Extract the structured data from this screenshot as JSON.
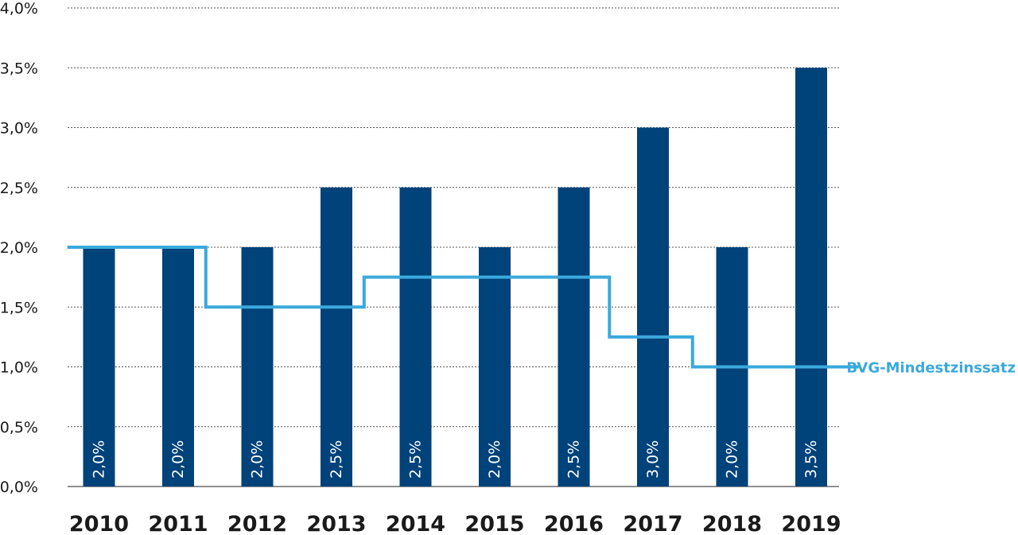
{
  "chart_data": {
    "type": "bar",
    "categories": [
      "2010",
      "2011",
      "2012",
      "2013",
      "2014",
      "2015",
      "2016",
      "2017",
      "2018",
      "2019"
    ],
    "values": [
      2.0,
      2.0,
      2.0,
      2.5,
      2.5,
      2.0,
      2.5,
      3.0,
      2.0,
      3.5
    ],
    "data_labels": [
      "2,0%",
      "2,0%",
      "2,0%",
      "2,5%",
      "2,5%",
      "2,0%",
      "2,5%",
      "3,0%",
      "2,0%",
      "3,5%"
    ],
    "bar_color": "#00427a",
    "ylim": [
      0,
      4.0
    ],
    "yticks": [
      0,
      0.5,
      1.0,
      1.5,
      2.0,
      2.5,
      3.0,
      3.5,
      4.0
    ],
    "ytick_labels": [
      "0,0%",
      "0,5%",
      "1,0%",
      "1,5%",
      "2,0%",
      "2,5%",
      "3,0%",
      "3,5%",
      "4,0%"
    ],
    "grid": "horizontal-dotted",
    "title": "",
    "xlabel": "",
    "ylabel": "",
    "step_line": {
      "name": "BVG-Mindestzinssatz",
      "color": "#3ba9dc",
      "segments": [
        {
          "from": 2009.6,
          "to": 2011.35,
          "value": 2.0
        },
        {
          "from": 2011.35,
          "to": 2013.35,
          "value": 1.5
        },
        {
          "from": 2013.35,
          "to": 2016.45,
          "value": 1.75
        },
        {
          "from": 2016.45,
          "to": 2017.5,
          "value": 1.25
        },
        {
          "from": 2017.5,
          "to": 2019.6,
          "value": 1.0
        }
      ]
    }
  }
}
